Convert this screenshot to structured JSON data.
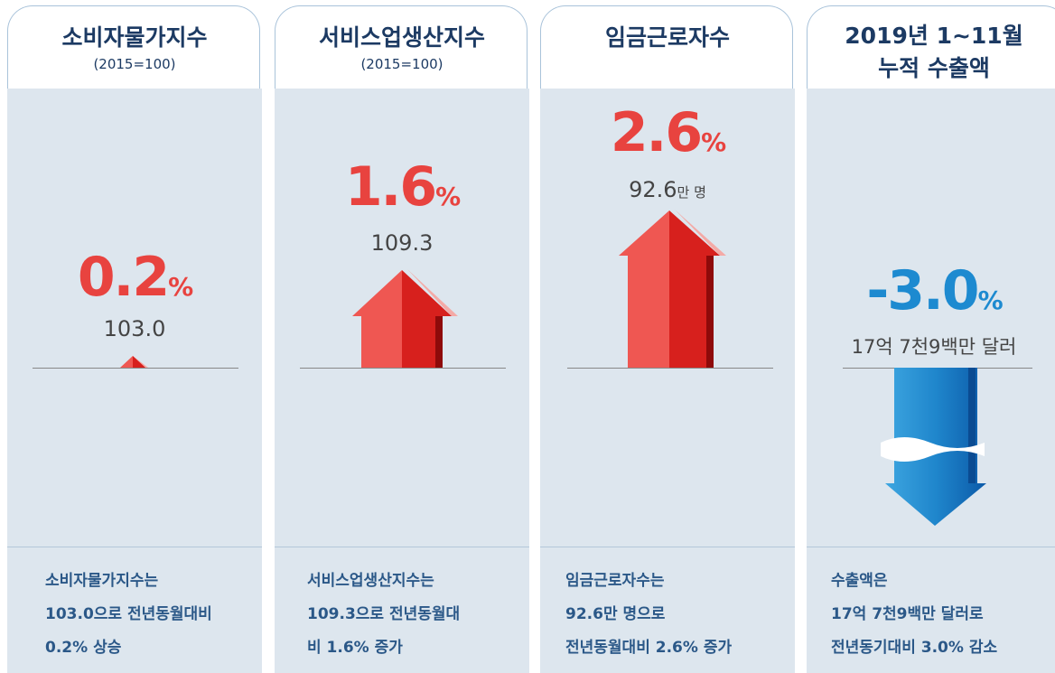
{
  "panels": [
    {
      "title": "소비자물가지수",
      "subtitle": "(2015=100)",
      "change": "0.2",
      "unit": "%",
      "level": "103.0",
      "description": [
        "소비자물가지수는",
        "103.0으로 전년동월대비",
        "0.2% 상승"
      ]
    },
    {
      "title": "서비스업생산지수",
      "subtitle": "(2015=100)",
      "change": "1.6",
      "unit": "%",
      "level": "109.3",
      "description": [
        "서비스업생산지수는",
        "109.3으로 전년동월대",
        "비 1.6% 증가"
      ]
    },
    {
      "title": "임금근로자수",
      "change": "2.6",
      "unit": "%",
      "level": "92.6",
      "level_unit": "만 명",
      "description": [
        "임금근로자수는",
        "92.6만 명으로",
        "전년동월대비 2.6% 증가"
      ]
    },
    {
      "title": "2019년 1~11월",
      "title_line2": "누적 수출액",
      "change": "-3.0",
      "unit": "%",
      "level": "17억 7천9백만 달러",
      "description": [
        "수출액은",
        "17억 7천9백만 달러로",
        "전년동기대비 3.0% 감소"
      ]
    }
  ]
}
